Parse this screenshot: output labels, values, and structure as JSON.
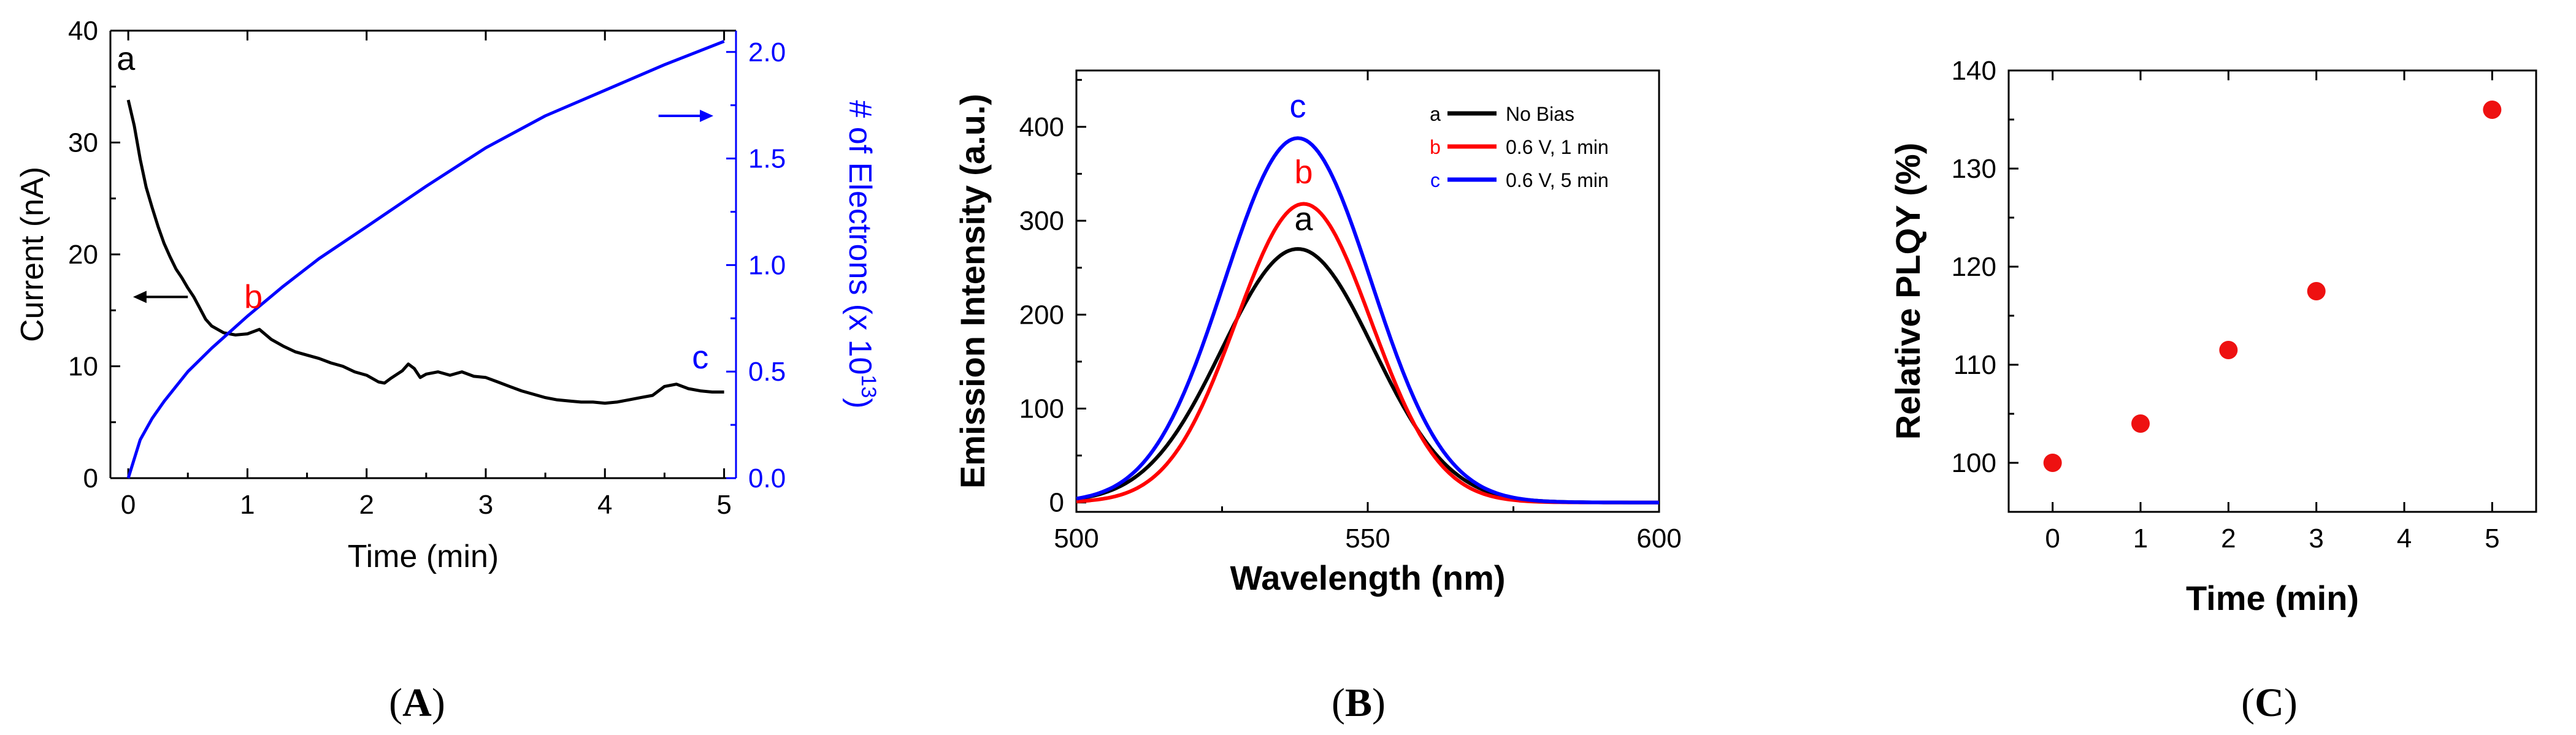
{
  "chart_data": [
    {
      "type": "line",
      "panel_label": "(A)",
      "panel_label_open": "(",
      "panel_label_letter": "A",
      "panel_label_close": ")",
      "xlabel": "Time (min)",
      "ylabel": "Current (nA)",
      "y2label_prefix": "# of Electrons (x 10",
      "y2label_exp": "13",
      "y2label_suffix": ")",
      "xlim": [
        -0.15,
        5.1
      ],
      "ylim": [
        0,
        40
      ],
      "y2lim": [
        0,
        2.1
      ],
      "xticks": [
        "0",
        "1",
        "2",
        "3",
        "4",
        "5"
      ],
      "yticks": [
        "0",
        "10",
        "20",
        "30",
        "40"
      ],
      "y2ticks": [
        "0.0",
        "0.5",
        "1.0",
        "1.5",
        "2.0"
      ],
      "colors": {
        "current": "#000000",
        "electrons": "#0000ff",
        "label_b": "#ff0000"
      },
      "series": [
        {
          "name": "Current",
          "axis": "left",
          "x": [
            0,
            0.05,
            0.1,
            0.15,
            0.2,
            0.25,
            0.3,
            0.35,
            0.4,
            0.45,
            0.5,
            0.55,
            0.6,
            0.65,
            0.7,
            0.8,
            0.9,
            1.0,
            1.1,
            1.2,
            1.3,
            1.4,
            1.5,
            1.6,
            1.7,
            1.8,
            1.9,
            2.0,
            2.1,
            2.15,
            2.2,
            2.3,
            2.35,
            2.4,
            2.45,
            2.5,
            2.6,
            2.7,
            2.8,
            2.9,
            3.0,
            3.1,
            3.2,
            3.3,
            3.4,
            3.5,
            3.6,
            3.7,
            3.8,
            3.9,
            4.0,
            4.1,
            4.2,
            4.3,
            4.4,
            4.5,
            4.6,
            4.7,
            4.8,
            4.9,
            5.0
          ],
          "values": [
            33.8,
            31.5,
            28.5,
            26.0,
            24.2,
            22.5,
            21.0,
            19.8,
            18.7,
            17.9,
            17.0,
            16.2,
            15.2,
            14.2,
            13.6,
            13.0,
            12.8,
            12.9,
            13.3,
            12.4,
            11.8,
            11.3,
            11.0,
            10.7,
            10.3,
            10.0,
            9.5,
            9.2,
            8.6,
            8.5,
            8.9,
            9.6,
            10.2,
            9.8,
            9.0,
            9.3,
            9.5,
            9.2,
            9.5,
            9.1,
            9.0,
            8.6,
            8.2,
            7.8,
            7.5,
            7.2,
            7.0,
            6.9,
            6.8,
            6.8,
            6.7,
            6.8,
            7.0,
            7.2,
            7.4,
            8.2,
            8.4,
            8.0,
            7.8,
            7.7,
            7.7
          ]
        },
        {
          "name": "# of Electrons",
          "axis": "right",
          "x": [
            0,
            0.1,
            0.2,
            0.3,
            0.5,
            0.7,
            1.0,
            1.3,
            1.6,
            2.0,
            2.5,
            3.0,
            3.5,
            4.0,
            4.5,
            5.0
          ],
          "values": [
            0.0,
            0.18,
            0.28,
            0.36,
            0.5,
            0.61,
            0.76,
            0.9,
            1.03,
            1.18,
            1.37,
            1.55,
            1.7,
            1.82,
            1.94,
            2.05
          ]
        }
      ],
      "annotations": [
        {
          "text": "a",
          "x": -0.02,
          "y": 36.5,
          "axis": "left",
          "color": "#000000"
        },
        {
          "text": "b",
          "x": 1.05,
          "y": 15.2,
          "axis": "left",
          "color": "#ff0000"
        },
        {
          "text": "c",
          "x": 4.8,
          "y": 9.8,
          "axis": "left",
          "color": "#0000ff"
        }
      ]
    },
    {
      "type": "line",
      "panel_label": "(B)",
      "panel_label_open": "(",
      "panel_label_letter": "B",
      "panel_label_close": ")",
      "xlabel": "Wavelength (nm)",
      "ylabel": "Emission Intensity (a.u.)",
      "xlim": [
        500,
        600
      ],
      "ylim": [
        -10,
        460
      ],
      "xticks": [
        "500",
        "550",
        "600"
      ],
      "yticks": [
        "0",
        "100",
        "200",
        "300",
        "400"
      ],
      "legend_position": "top-right",
      "series": [
        {
          "name": "No Bias",
          "marker": "a",
          "color": "#000000",
          "peak": 270,
          "center": 538,
          "sigma": 13.0
        },
        {
          "name": "0.6 V, 1 min",
          "marker": "b",
          "color": "#ff0000",
          "peak": 318,
          "center": 539,
          "sigma": 11.6
        },
        {
          "name": "0.6 V, 5 min",
          "marker": "c",
          "color": "#0000ff",
          "peak": 388,
          "center": 538,
          "sigma": 12.6
        }
      ],
      "annotations": [
        {
          "text": "a",
          "x": 539,
          "y": 290,
          "color": "#000000"
        },
        {
          "text": "b",
          "x": 539,
          "y": 340,
          "color": "#ff0000"
        },
        {
          "text": "c",
          "x": 538,
          "y": 410,
          "color": "#0000ff"
        }
      ]
    },
    {
      "type": "scatter",
      "panel_label": "(C)",
      "panel_label_open": "(",
      "panel_label_letter": "C",
      "panel_label_close": ")",
      "xlabel": "Time (min)",
      "ylabel": "Relative PLQY (%)",
      "xlim": [
        -0.5,
        5.5
      ],
      "ylim": [
        95,
        140
      ],
      "xticks": [
        "0",
        "1",
        "2",
        "3",
        "4",
        "5"
      ],
      "yticks": [
        "100",
        "110",
        "120",
        "130",
        "140"
      ],
      "marker_color": "#ee1111",
      "x": [
        0,
        1,
        2,
        3,
        5
      ],
      "values": [
        100,
        104,
        111.5,
        117.5,
        136
      ]
    }
  ]
}
